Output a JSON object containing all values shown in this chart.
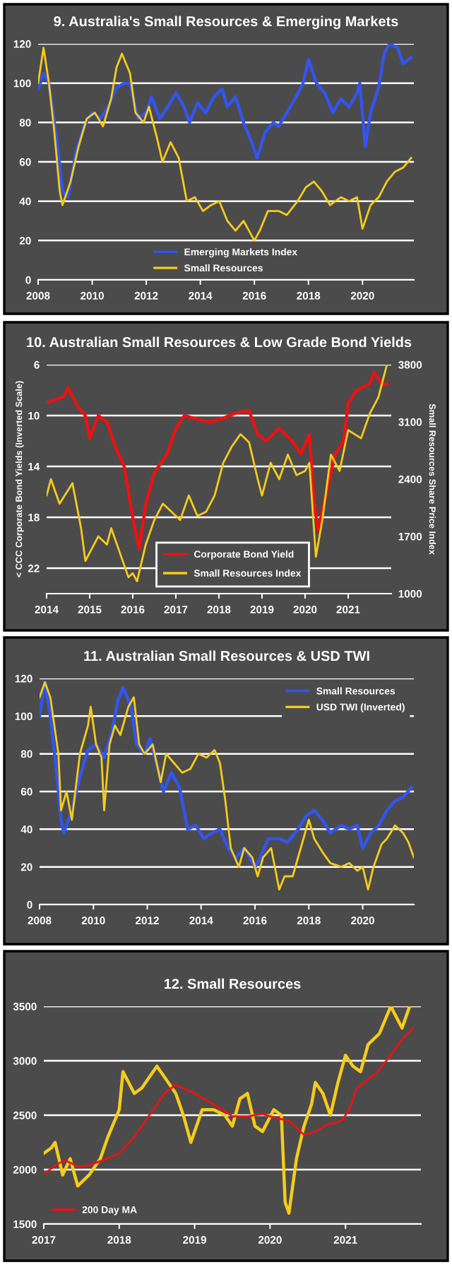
{
  "chart_data": [
    {
      "type": "line",
      "title": "9. Australia's Small Resources & Emerging Markets",
      "xlim": [
        2008,
        2021.9
      ],
      "xticks": [
        2008,
        2010,
        2012,
        2014,
        2016,
        2018,
        2020
      ],
      "ylim": [
        0,
        120
      ],
      "yticks": [
        0,
        20,
        40,
        60,
        80,
        100,
        120
      ],
      "grid": "y",
      "legend": "bottom",
      "series": [
        {
          "name": "Emerging Markets Index",
          "color": "#3355ee",
          "x": [
            2008.0,
            2008.2,
            2008.4,
            2008.7,
            2008.9,
            2009.1,
            2009.4,
            2009.7,
            2010.0,
            2010.3,
            2010.6,
            2010.9,
            2011.2,
            2011.4,
            2011.7,
            2012.0,
            2012.2,
            2012.5,
            2012.8,
            2013.1,
            2013.4,
            2013.6,
            2013.9,
            2014.2,
            2014.5,
            2014.8,
            2015.0,
            2015.3,
            2015.6,
            2015.9,
            2016.1,
            2016.4,
            2016.7,
            2016.9,
            2017.2,
            2017.5,
            2017.8,
            2018.0,
            2018.3,
            2018.6,
            2018.9,
            2019.2,
            2019.5,
            2019.8,
            2019.9,
            2020.1,
            2020.3,
            2020.6,
            2020.8,
            2021.0,
            2021.3,
            2021.5,
            2021.8
          ],
          "values": [
            97,
            105,
            100,
            70,
            45,
            42,
            65,
            78,
            85,
            82,
            88,
            98,
            100,
            100,
            82,
            85,
            93,
            82,
            88,
            95,
            88,
            80,
            90,
            85,
            93,
            97,
            88,
            93,
            80,
            70,
            62,
            75,
            80,
            78,
            85,
            92,
            100,
            112,
            100,
            95,
            85,
            92,
            88,
            95,
            100,
            68,
            85,
            98,
            115,
            120,
            118,
            110,
            113
          ]
        },
        {
          "name": "Small Resources",
          "color": "#f5cc1b",
          "x": [
            2008.0,
            2008.2,
            2008.4,
            2008.6,
            2008.8,
            2008.9,
            2009.2,
            2009.5,
            2009.8,
            2010.1,
            2010.4,
            2010.7,
            2010.9,
            2011.1,
            2011.4,
            2011.6,
            2011.9,
            2012.1,
            2012.4,
            2012.6,
            2012.9,
            2013.2,
            2013.5,
            2013.8,
            2014.1,
            2014.4,
            2014.7,
            2015.0,
            2015.3,
            2015.6,
            2015.8,
            2016.0,
            2016.2,
            2016.5,
            2016.9,
            2017.2,
            2017.6,
            2017.9,
            2018.2,
            2018.5,
            2018.8,
            2019.2,
            2019.5,
            2019.8,
            2020.0,
            2020.3,
            2020.6,
            2020.9,
            2021.2,
            2021.5,
            2021.8
          ],
          "values": [
            100,
            118,
            100,
            75,
            45,
            38,
            50,
            68,
            82,
            85,
            78,
            92,
            108,
            115,
            105,
            85,
            80,
            88,
            72,
            60,
            70,
            62,
            40,
            42,
            35,
            38,
            40,
            30,
            25,
            30,
            25,
            20,
            25,
            35,
            35,
            33,
            40,
            47,
            50,
            45,
            38,
            42,
            40,
            42,
            26,
            38,
            42,
            50,
            55,
            57,
            62
          ]
        }
      ]
    },
    {
      "type": "line",
      "title": "10. Australian Small Resources & Low Grade Bond Yields",
      "ylabel": "< CCC Corporate Bond Yields (Inverted Scale)",
      "y2label": "Small Resources Share Price Index",
      "xlim": [
        2014,
        2022
      ],
      "xticks": [
        2014,
        2015,
        2016,
        2017,
        2018,
        2019,
        2020,
        2021
      ],
      "ylim": [
        24,
        6
      ],
      "yticks": [
        6,
        10,
        14,
        18,
        22
      ],
      "y2lim": [
        1000,
        3800
      ],
      "y2ticks": [
        1000,
        1700,
        2400,
        3100,
        3800
      ],
      "grid": "y",
      "legend": "bottom",
      "series": [
        {
          "name": "Corporate Bond Yield",
          "color": "#ee1111",
          "x": [
            2014.0,
            2014.4,
            2014.5,
            2014.7,
            2014.9,
            2015.0,
            2015.2,
            2015.4,
            2015.6,
            2015.8,
            2016.0,
            2016.15,
            2016.3,
            2016.5,
            2016.8,
            2017.0,
            2017.2,
            2017.5,
            2017.8,
            2018.1,
            2018.4,
            2018.7,
            2018.9,
            2019.1,
            2019.4,
            2019.7,
            2019.9,
            2020.1,
            2020.2,
            2020.3,
            2020.5,
            2020.7,
            2020.9,
            2021.0,
            2021.2,
            2021.5,
            2021.6,
            2021.8,
            2021.9
          ],
          "values": [
            9.0,
            8.5,
            7.8,
            9.2,
            10.0,
            11.8,
            10.0,
            10.5,
            12.5,
            14.0,
            18.0,
            20.5,
            17.0,
            14.5,
            13.0,
            11.0,
            10.0,
            10.3,
            10.5,
            10.2,
            9.8,
            9.6,
            11.5,
            12.0,
            11.0,
            12.0,
            13.0,
            11.5,
            16.5,
            19.0,
            16.0,
            13.0,
            12.0,
            9.0,
            8.0,
            7.5,
            6.6,
            7.6,
            7.5
          ]
        },
        {
          "name": "Small Resources Index",
          "color": "#f5cc1b",
          "axis": "y2",
          "x": [
            2014.0,
            2014.1,
            2014.3,
            2014.6,
            2014.8,
            2014.9,
            2015.2,
            2015.4,
            2015.5,
            2015.7,
            2015.9,
            2016.0,
            2016.1,
            2016.3,
            2016.5,
            2016.7,
            2016.9,
            2017.1,
            2017.3,
            2017.5,
            2017.7,
            2017.9,
            2018.1,
            2018.3,
            2018.5,
            2018.7,
            2018.9,
            2019.0,
            2019.2,
            2019.4,
            2019.6,
            2019.8,
            2020.0,
            2020.1,
            2020.25,
            2020.4,
            2020.6,
            2020.8,
            2021.0,
            2021.3,
            2021.5,
            2021.7,
            2021.9
          ],
          "values": [
            2200,
            2400,
            2100,
            2350,
            1800,
            1400,
            1700,
            1600,
            1800,
            1500,
            1200,
            1250,
            1150,
            1600,
            1900,
            2100,
            2000,
            1900,
            2200,
            1950,
            2000,
            2200,
            2600,
            2800,
            2950,
            2850,
            2400,
            2200,
            2600,
            2400,
            2700,
            2450,
            2500,
            2600,
            1450,
            1900,
            2700,
            2500,
            3000,
            2900,
            3200,
            3400,
            3800
          ]
        }
      ]
    },
    {
      "type": "line",
      "title": "11. Australian Small Resources & USD TWI",
      "xlim": [
        2008,
        2021.9
      ],
      "xticks": [
        2008,
        2010,
        2012,
        2014,
        2016,
        2018,
        2020
      ],
      "ylim": [
        0,
        120
      ],
      "yticks": [
        0,
        20,
        40,
        60,
        80,
        100,
        120
      ],
      "grid": "y",
      "legend": "top right",
      "series": [
        {
          "name": "Small Resources",
          "color": "#3355ee",
          "x": [
            2008.0,
            2008.2,
            2008.4,
            2008.6,
            2008.8,
            2008.9,
            2009.2,
            2009.5,
            2009.8,
            2010.1,
            2010.4,
            2010.7,
            2010.9,
            2011.1,
            2011.4,
            2011.6,
            2011.9,
            2012.1,
            2012.4,
            2012.6,
            2012.9,
            2013.2,
            2013.5,
            2013.8,
            2014.1,
            2014.4,
            2014.7,
            2015.0,
            2015.3,
            2015.6,
            2015.8,
            2016.0,
            2016.2,
            2016.5,
            2016.9,
            2017.2,
            2017.6,
            2017.9,
            2018.2,
            2018.5,
            2018.8,
            2019.2,
            2019.5,
            2019.8,
            2020.0,
            2020.3,
            2020.6,
            2020.9,
            2021.2,
            2021.5,
            2021.8
          ],
          "values": [
            100,
            118,
            100,
            75,
            45,
            38,
            50,
            68,
            82,
            85,
            78,
            92,
            108,
            115,
            105,
            85,
            80,
            88,
            72,
            60,
            70,
            62,
            40,
            42,
            35,
            38,
            40,
            30,
            25,
            30,
            25,
            20,
            25,
            35,
            35,
            33,
            40,
            47,
            50,
            45,
            38,
            42,
            40,
            42,
            30,
            38,
            42,
            50,
            55,
            57,
            62
          ]
        },
        {
          "name": "USD TWI (Inverted)",
          "color": "#f5cc1b",
          "x": [
            2008.0,
            2008.2,
            2008.4,
            2008.7,
            2008.8,
            2009.0,
            2009.2,
            2009.5,
            2009.8,
            2009.9,
            2010.1,
            2010.3,
            2010.4,
            2010.6,
            2010.8,
            2011.0,
            2011.3,
            2011.5,
            2011.7,
            2011.9,
            2012.2,
            2012.5,
            2012.7,
            2013.0,
            2013.3,
            2013.6,
            2013.9,
            2014.2,
            2014.5,
            2014.7,
            2014.9,
            2015.1,
            2015.4,
            2015.6,
            2015.9,
            2016.1,
            2016.3,
            2016.6,
            2016.9,
            2017.1,
            2017.4,
            2017.7,
            2018.0,
            2018.2,
            2018.5,
            2018.8,
            2019.2,
            2019.5,
            2019.8,
            2020.0,
            2020.2,
            2020.4,
            2020.7,
            2020.9,
            2021.2,
            2021.5,
            2021.7,
            2021.9
          ],
          "values": [
            110,
            118,
            110,
            80,
            50,
            60,
            45,
            80,
            95,
            105,
            85,
            78,
            50,
            85,
            95,
            90,
            105,
            110,
            85,
            80,
            85,
            65,
            80,
            75,
            70,
            72,
            80,
            78,
            82,
            75,
            55,
            30,
            20,
            30,
            25,
            15,
            25,
            30,
            8,
            15,
            15,
            30,
            45,
            35,
            28,
            22,
            20,
            22,
            18,
            20,
            8,
            20,
            32,
            35,
            42,
            38,
            33,
            25
          ]
        }
      ]
    },
    {
      "type": "line",
      "title": "12. Small Resources",
      "xlim": [
        2017,
        2022
      ],
      "xticks": [
        2017,
        2018,
        2019,
        2020,
        2021
      ],
      "ylim": [
        1500,
        3500
      ],
      "yticks": [
        1500,
        2000,
        2500,
        3000,
        3500
      ],
      "grid": "y",
      "legend": "bottom left",
      "series": [
        {
          "color": "#f5cc1b",
          "x": [
            2017.0,
            2017.1,
            2017.15,
            2017.25,
            2017.35,
            2017.45,
            2017.6,
            2017.75,
            2017.85,
            2018.0,
            2018.05,
            2018.2,
            2018.3,
            2018.4,
            2018.5,
            2018.6,
            2018.75,
            2018.85,
            2018.95,
            2019.1,
            2019.25,
            2019.4,
            2019.5,
            2019.6,
            2019.7,
            2019.8,
            2019.9,
            2020.05,
            2020.15,
            2020.2,
            2020.25,
            2020.35,
            2020.45,
            2020.55,
            2020.6,
            2020.7,
            2020.8,
            2020.9,
            2021.0,
            2021.1,
            2021.2,
            2021.3,
            2021.45,
            2021.6,
            2021.75,
            2021.85
          ],
          "values": [
            2150,
            2200,
            2250,
            1950,
            2100,
            1850,
            1950,
            2100,
            2300,
            2550,
            2900,
            2700,
            2750,
            2850,
            2950,
            2850,
            2700,
            2500,
            2250,
            2550,
            2550,
            2500,
            2400,
            2650,
            2700,
            2400,
            2350,
            2550,
            2500,
            1700,
            1600,
            2100,
            2400,
            2600,
            2800,
            2700,
            2500,
            2800,
            3050,
            2950,
            2900,
            3150,
            3250,
            3500,
            3300,
            3500
          ]
        },
        {
          "name": "200 Day MA",
          "color": "#ee1111",
          "x": [
            2017.0,
            2017.2,
            2017.3,
            2017.45,
            2017.6,
            2017.8,
            2018.0,
            2018.2,
            2018.45,
            2018.6,
            2018.75,
            2019.0,
            2019.3,
            2019.5,
            2019.7,
            2019.9,
            2020.1,
            2020.25,
            2020.45,
            2020.6,
            2020.75,
            2020.95,
            2021.05,
            2021.15,
            2021.4,
            2021.6,
            2021.75,
            2021.9
          ],
          "values": [
            1960,
            2060,
            2080,
            2030,
            2040,
            2090,
            2150,
            2300,
            2550,
            2700,
            2780,
            2700,
            2580,
            2490,
            2490,
            2510,
            2470,
            2450,
            2320,
            2350,
            2410,
            2450,
            2550,
            2750,
            2880,
            3050,
            3200,
            3300
          ]
        }
      ]
    }
  ]
}
